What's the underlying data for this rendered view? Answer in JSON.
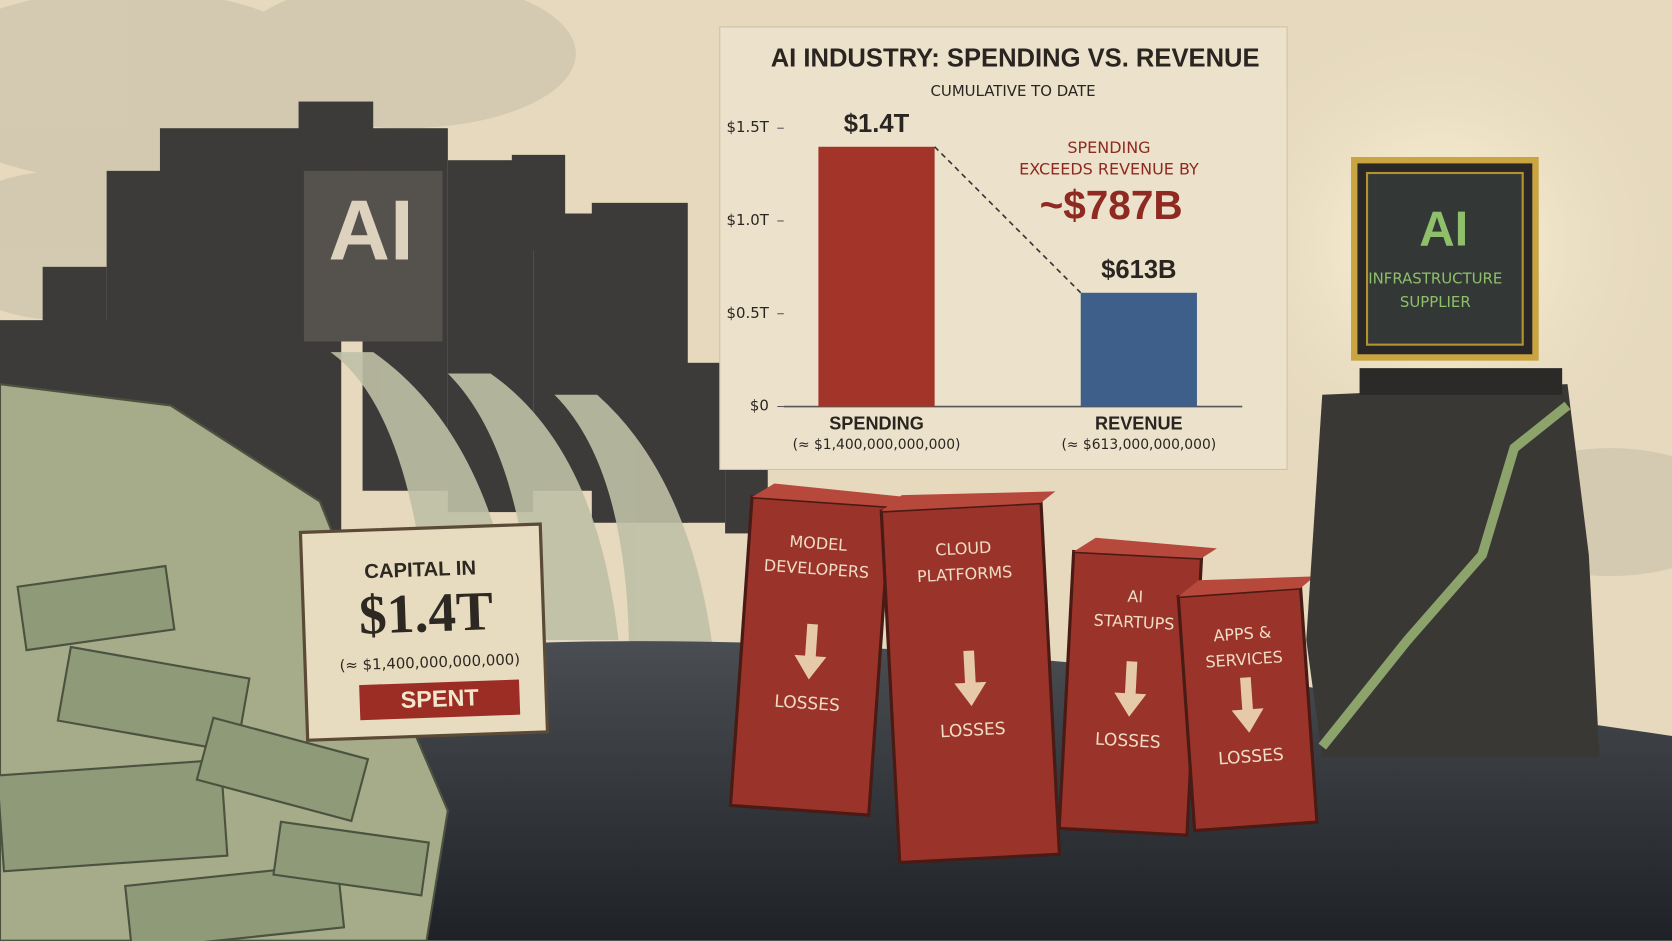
{
  "chart_data": {
    "type": "bar",
    "title": "AI INDUSTRY: SPENDING VS. REVENUE",
    "subtitle": "CUMULATIVE TO DATE",
    "categories": [
      "SPENDING",
      "REVENUE"
    ],
    "category_notes": [
      "(≈ $1,400,000,000,000)",
      "(≈ $613,000,000,000)"
    ],
    "values": [
      1.4,
      0.613
    ],
    "value_labels": [
      "$1.4T",
      "$613B"
    ],
    "colors": [
      "#a3342a",
      "#3e5f8a"
    ],
    "ylim": [
      0,
      1.5
    ],
    "yticks": [
      {
        "value": 0,
        "label": "$0"
      },
      {
        "value": 0.5,
        "label": "$0.5T"
      },
      {
        "value": 1.0,
        "label": "$1.0T"
      },
      {
        "value": 1.5,
        "label": "$1.5T"
      }
    ],
    "annotation": {
      "text": [
        "SPENDING",
        "EXCEEDS REVENUE BY"
      ],
      "highlight": "~$787B"
    }
  },
  "illustration": {
    "building_label": "AI",
    "sign": {
      "line1": "CAPITAL IN",
      "amount": "$1.4T",
      "note": "(≈ $1,400,000,000,000)",
      "stamp": "SPENT"
    },
    "pillars": [
      {
        "label": [
          "MODEL",
          "DEVELOPERS"
        ],
        "status": "LOSSES"
      },
      {
        "label": [
          "CLOUD",
          "PLATFORMS"
        ],
        "status": "LOSSES"
      },
      {
        "label": [
          "AI",
          "STARTUPS"
        ],
        "status": "LOSSES"
      },
      {
        "label": [
          "APPS &",
          "SERVICES"
        ],
        "status": "LOSSES"
      }
    ],
    "chip": {
      "title": "AI",
      "label": [
        "INFRASTRUCTURE",
        "SUPPLIER"
      ]
    }
  }
}
